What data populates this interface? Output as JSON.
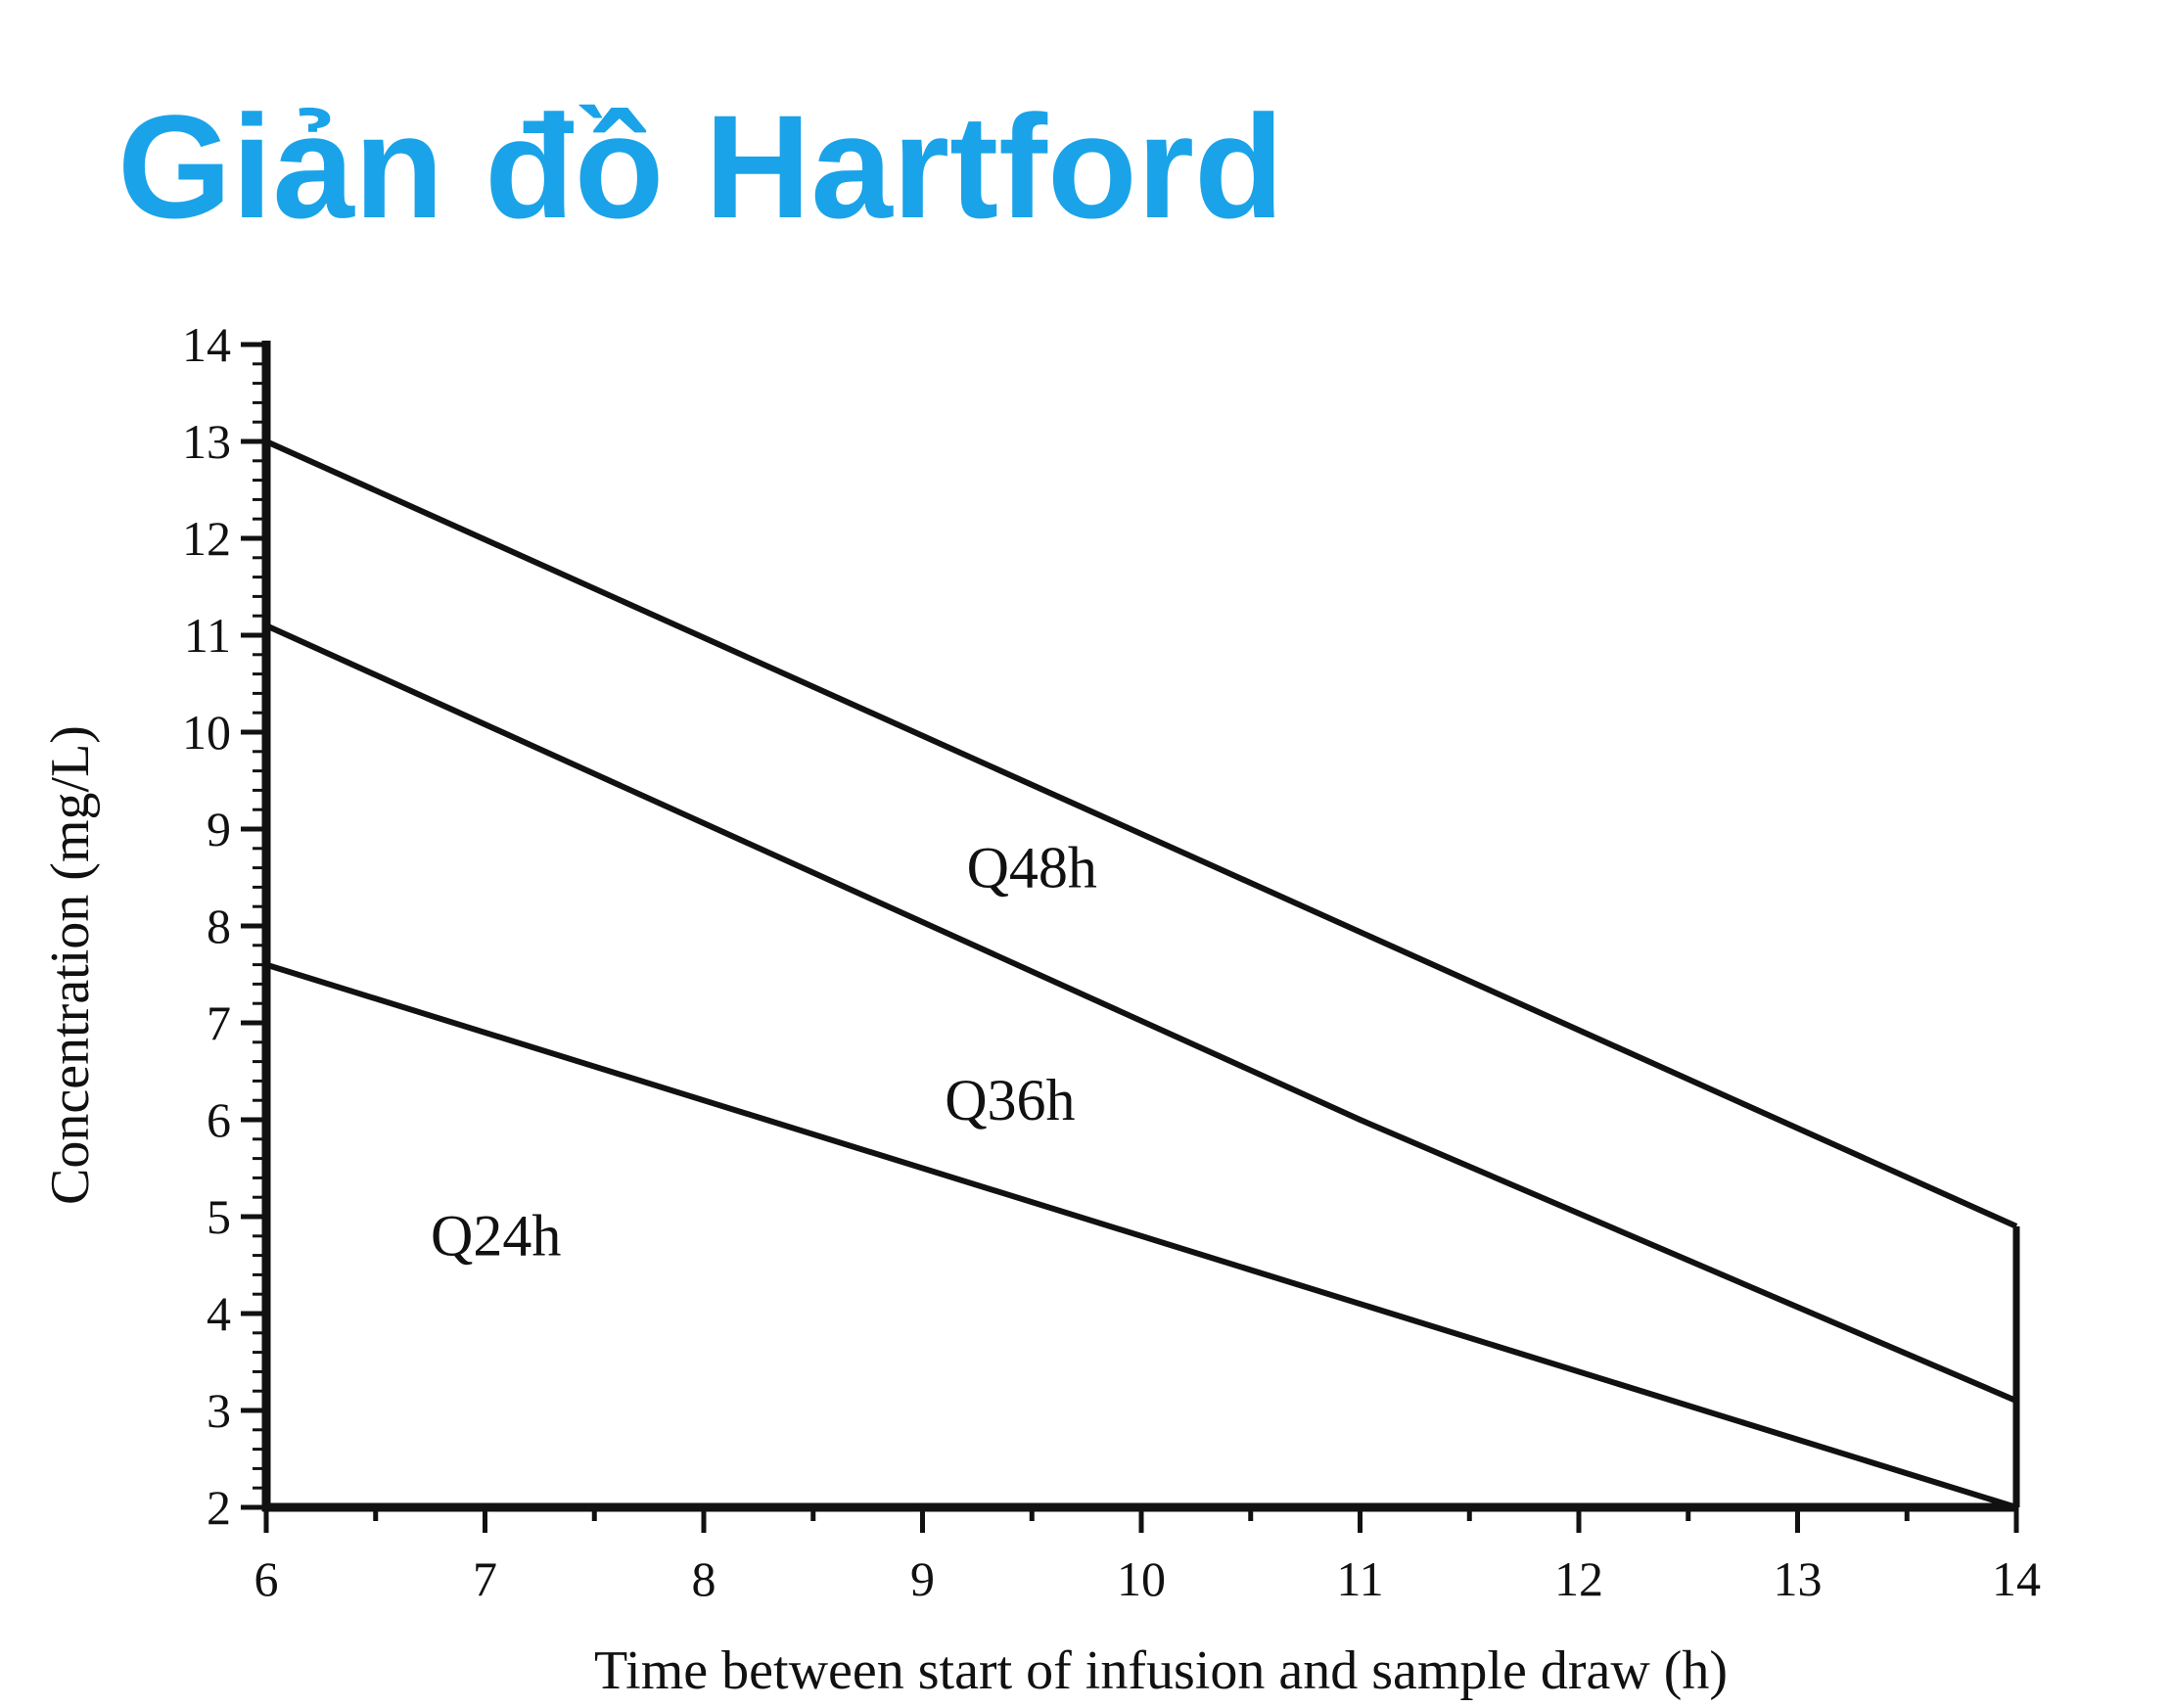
{
  "page": {
    "title": "Giản đồ Hartford",
    "title_color": "#1aa3e8"
  },
  "chart_data": {
    "type": "line",
    "title": "Giản đồ Hartford",
    "xlabel": "Time between start of infusion and sample draw (h)",
    "ylabel": "Concentration (mg/L)",
    "xlim": [
      6,
      14
    ],
    "ylim": [
      2,
      14
    ],
    "xticks": [
      6,
      7,
      8,
      9,
      10,
      11,
      12,
      13,
      14
    ],
    "yticks": [
      2,
      3,
      4,
      5,
      6,
      7,
      8,
      9,
      10,
      11,
      12,
      13,
      14
    ],
    "grid": false,
    "series": [
      {
        "points": [
          [
            6,
            13
          ],
          [
            14,
            4.9
          ]
        ]
      },
      {
        "points": [
          [
            6,
            11.1
          ],
          [
            11,
            6
          ],
          [
            14,
            3.1
          ]
        ]
      },
      {
        "points": [
          [
            6,
            7.6
          ],
          [
            14,
            2
          ]
        ]
      }
    ],
    "region_labels": [
      {
        "text": "Q48h",
        "x": 9.5,
        "y": 8.4
      },
      {
        "text": "Q36h",
        "x": 9.4,
        "y": 6
      },
      {
        "text": "Q24h",
        "x": 7.05,
        "y": 4.6
      }
    ],
    "line_color": "#111111"
  }
}
